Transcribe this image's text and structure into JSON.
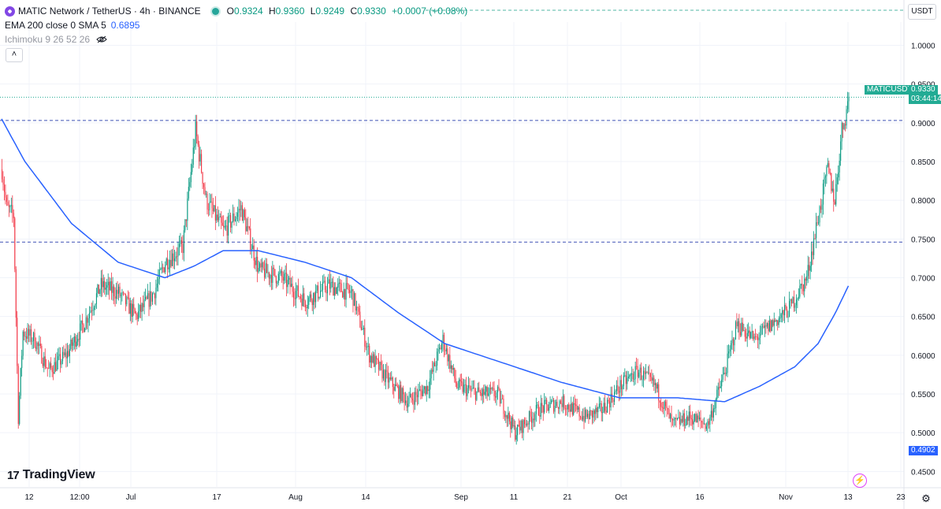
{
  "header": {
    "symbol": "MATIC Network / TetherUS · 4h · BINANCE",
    "open_label": "O",
    "open": "0.9324",
    "high_label": "H",
    "high": "0.9360",
    "low_label": "L",
    "low": "0.9249",
    "close_label": "C",
    "close": "0.9330",
    "change": "+0.0007 (+0.08%)"
  },
  "indicators": {
    "ema_label": "EMA 200 close 0 SMA 5",
    "ema_value": "0.6895",
    "ichimoku_label": "Ichimoku 9 26 52 26"
  },
  "controls": {
    "collapse_glyph": "˄",
    "currency": "USDT",
    "settings_icon": "gear-icon",
    "flash_icon": "lightning-icon"
  },
  "branding": {
    "name": "TradingView",
    "mark": "17"
  },
  "price_labels": {
    "symbol_tag": "MATICUSDT",
    "last_price": "0.9330",
    "countdown": "03:44:14",
    "low_marker": "0.4902"
  },
  "colors": {
    "up": "#089981",
    "down": "#f23645",
    "ema": "#2962ff",
    "hline": "#3f51b5",
    "last_price": "#22ab94",
    "low_marker": "#2962ff"
  },
  "chart_data": {
    "type": "candlestick",
    "ylim": [
      0.43,
      1.03
    ],
    "y_ticks": [
      "1.0000",
      "0.9500",
      "0.9000",
      "0.8500",
      "0.8000",
      "0.7500",
      "0.7000",
      "0.6500",
      "0.6000",
      "0.5500",
      "0.5000",
      "0.4500"
    ],
    "x_ticks": [
      "12",
      "12:00",
      "Jul",
      "17",
      "Aug",
      "14",
      "Sep",
      "11",
      "21",
      "Oct",
      "16",
      "Nov",
      "13",
      "23"
    ],
    "horizontal_lines": [
      0.903,
      0.746
    ],
    "last_price": 0.933,
    "key_points": [
      {
        "t": 0,
        "p": 0.84
      },
      {
        "t": 4,
        "p": 0.79
      },
      {
        "t": 10,
        "p": 0.78
      },
      {
        "t": 14,
        "p": 0.52
      },
      {
        "t": 18,
        "p": 0.63
      },
      {
        "t": 28,
        "p": 0.62
      },
      {
        "t": 40,
        "p": 0.58
      },
      {
        "t": 55,
        "p": 0.6
      },
      {
        "t": 70,
        "p": 0.64
      },
      {
        "t": 85,
        "p": 0.69
      },
      {
        "t": 100,
        "p": 0.68
      },
      {
        "t": 115,
        "p": 0.65
      },
      {
        "t": 130,
        "p": 0.68
      },
      {
        "t": 140,
        "p": 0.72
      },
      {
        "t": 155,
        "p": 0.74
      },
      {
        "t": 166,
        "p": 0.89
      },
      {
        "t": 175,
        "p": 0.8
      },
      {
        "t": 190,
        "p": 0.76
      },
      {
        "t": 205,
        "p": 0.79
      },
      {
        "t": 220,
        "p": 0.71
      },
      {
        "t": 240,
        "p": 0.7
      },
      {
        "t": 260,
        "p": 0.67
      },
      {
        "t": 280,
        "p": 0.69
      },
      {
        "t": 300,
        "p": 0.68
      },
      {
        "t": 315,
        "p": 0.6
      },
      {
        "t": 330,
        "p": 0.57
      },
      {
        "t": 348,
        "p": 0.54
      },
      {
        "t": 365,
        "p": 0.56
      },
      {
        "t": 378,
        "p": 0.62
      },
      {
        "t": 390,
        "p": 0.56
      },
      {
        "t": 410,
        "p": 0.55
      },
      {
        "t": 425,
        "p": 0.55
      },
      {
        "t": 440,
        "p": 0.5
      },
      {
        "t": 460,
        "p": 0.53
      },
      {
        "t": 480,
        "p": 0.54
      },
      {
        "t": 500,
        "p": 0.52
      },
      {
        "t": 515,
        "p": 0.53
      },
      {
        "t": 530,
        "p": 0.56
      },
      {
        "t": 545,
        "p": 0.58
      },
      {
        "t": 560,
        "p": 0.56
      },
      {
        "t": 575,
        "p": 0.51
      },
      {
        "t": 590,
        "p": 0.52
      },
      {
        "t": 605,
        "p": 0.51
      },
      {
        "t": 620,
        "p": 0.58
      },
      {
        "t": 630,
        "p": 0.64
      },
      {
        "t": 645,
        "p": 0.62
      },
      {
        "t": 660,
        "p": 0.64
      },
      {
        "t": 675,
        "p": 0.66
      },
      {
        "t": 690,
        "p": 0.7
      },
      {
        "t": 700,
        "p": 0.78
      },
      {
        "t": 708,
        "p": 0.84
      },
      {
        "t": 714,
        "p": 0.8
      },
      {
        "t": 720,
        "p": 0.89
      },
      {
        "t": 726,
        "p": 0.93
      }
    ],
    "ema_points": [
      {
        "t": 0,
        "p": 0.905
      },
      {
        "t": 20,
        "p": 0.85
      },
      {
        "t": 60,
        "p": 0.77
      },
      {
        "t": 100,
        "p": 0.72
      },
      {
        "t": 140,
        "p": 0.7
      },
      {
        "t": 165,
        "p": 0.715
      },
      {
        "t": 190,
        "p": 0.735
      },
      {
        "t": 220,
        "p": 0.735
      },
      {
        "t": 260,
        "p": 0.72
      },
      {
        "t": 300,
        "p": 0.7
      },
      {
        "t": 340,
        "p": 0.655
      },
      {
        "t": 380,
        "p": 0.615
      },
      {
        "t": 430,
        "p": 0.59
      },
      {
        "t": 480,
        "p": 0.565
      },
      {
        "t": 530,
        "p": 0.545
      },
      {
        "t": 580,
        "p": 0.545
      },
      {
        "t": 620,
        "p": 0.54
      },
      {
        "t": 650,
        "p": 0.56
      },
      {
        "t": 680,
        "p": 0.585
      },
      {
        "t": 700,
        "p": 0.615
      },
      {
        "t": 715,
        "p": 0.655
      },
      {
        "t": 726,
        "p": 0.6895
      }
    ]
  }
}
